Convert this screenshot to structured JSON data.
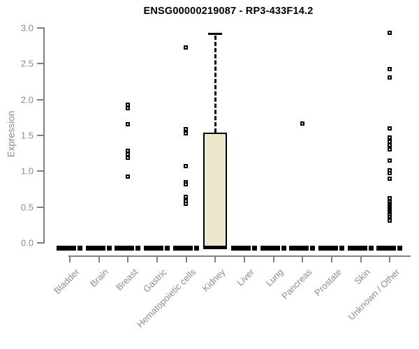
{
  "title": "ENSG00000219087 - RP3-433F14.2",
  "colors": {
    "box_fill": "#ece8cb",
    "box_border": "#000000",
    "axis_line": "#808080",
    "axis_text": "#8c8c8c",
    "title_text": "#000000",
    "background": "#ffffff"
  },
  "y_axis": {
    "label": "Expression",
    "tick_labels": [
      "0.0",
      "0.5",
      "1.0",
      "1.5",
      "2.0",
      "2.5",
      "3.0"
    ]
  },
  "x_axis": {
    "categories": [
      "Bladder",
      "Brain",
      "Breast",
      "Gastric",
      "Hematopoietic cells",
      "Kidney",
      "Liver",
      "Lung",
      "Pancreas",
      "Prostate",
      "Skin",
      "Unknown / Other"
    ]
  },
  "chart_data": {
    "type": "boxplot",
    "title": "ENSG00000219087 - RP3-433F14.2",
    "xlabel": "",
    "ylabel": "Expression",
    "ylim": [
      0,
      3
    ],
    "y_ticks": [
      0,
      0.5,
      1,
      1.5,
      2,
      2.5,
      3
    ],
    "grid": false,
    "categories": [
      "Bladder",
      "Brain",
      "Breast",
      "Gastric",
      "Hematopoietic cells",
      "Kidney",
      "Liver",
      "Lung",
      "Pancreas",
      "Prostate",
      "Skin",
      "Unknown / Other"
    ],
    "boxes": [
      {
        "category": "Bladder",
        "q1": 0,
        "median": 0,
        "q3": 0,
        "whisker_low": 0,
        "whisker_high": 0,
        "outliers": []
      },
      {
        "category": "Brain",
        "q1": 0,
        "median": 0,
        "q3": 0,
        "whisker_low": 0,
        "whisker_high": 0,
        "outliers": []
      },
      {
        "category": "Breast",
        "q1": 0,
        "median": 0,
        "q3": 0,
        "whisker_low": 0,
        "whisker_high": 0,
        "outliers": [
          1.93,
          1.88,
          1.66,
          1.29,
          1.24,
          1.19,
          0.93
        ]
      },
      {
        "category": "Gastric",
        "q1": 0,
        "median": 0,
        "q3": 0,
        "whisker_low": 0,
        "whisker_high": 0,
        "outliers": []
      },
      {
        "category": "Hematopoietic cells",
        "q1": 0,
        "median": 0,
        "q3": 0,
        "whisker_low": 0,
        "whisker_high": 0,
        "outliers": [
          2.73,
          1.59,
          1.53,
          1.07,
          0.85,
          0.82,
          0.64,
          0.58,
          0.55
        ]
      },
      {
        "category": "Kidney",
        "q1": 0,
        "median": 0,
        "q3": 1.54,
        "whisker_low": 0,
        "whisker_high": 2.92,
        "outliers": []
      },
      {
        "category": "Liver",
        "q1": 0,
        "median": 0,
        "q3": 0,
        "whisker_low": 0,
        "whisker_high": 0,
        "outliers": []
      },
      {
        "category": "Lung",
        "q1": 0,
        "median": 0,
        "q3": 0,
        "whisker_low": 0,
        "whisker_high": 0,
        "outliers": []
      },
      {
        "category": "Pancreas",
        "q1": 0,
        "median": 0,
        "q3": 0,
        "whisker_low": 0,
        "whisker_high": 0,
        "outliers": [
          1.67
        ]
      },
      {
        "category": "Prostate",
        "q1": 0,
        "median": 0,
        "q3": 0,
        "whisker_low": 0,
        "whisker_high": 0,
        "outliers": []
      },
      {
        "category": "Skin",
        "q1": 0,
        "median": 0,
        "q3": 0,
        "whisker_low": 0,
        "whisker_high": 0,
        "outliers": []
      },
      {
        "category": "Unknown / Other",
        "q1": 0,
        "median": 0,
        "q3": 0,
        "whisker_low": 0,
        "whisker_high": 0,
        "outliers": [
          2.93,
          2.43,
          2.31,
          1.6,
          1.47,
          1.41,
          1.36,
          1.31,
          1.15,
          1.01,
          0.97,
          0.9,
          0.62,
          0.57,
          0.55,
          0.53,
          0.51,
          0.49,
          0.47,
          0.45,
          0.43,
          0.41,
          0.39,
          0.36,
          0.33,
          0.31
        ]
      }
    ]
  }
}
